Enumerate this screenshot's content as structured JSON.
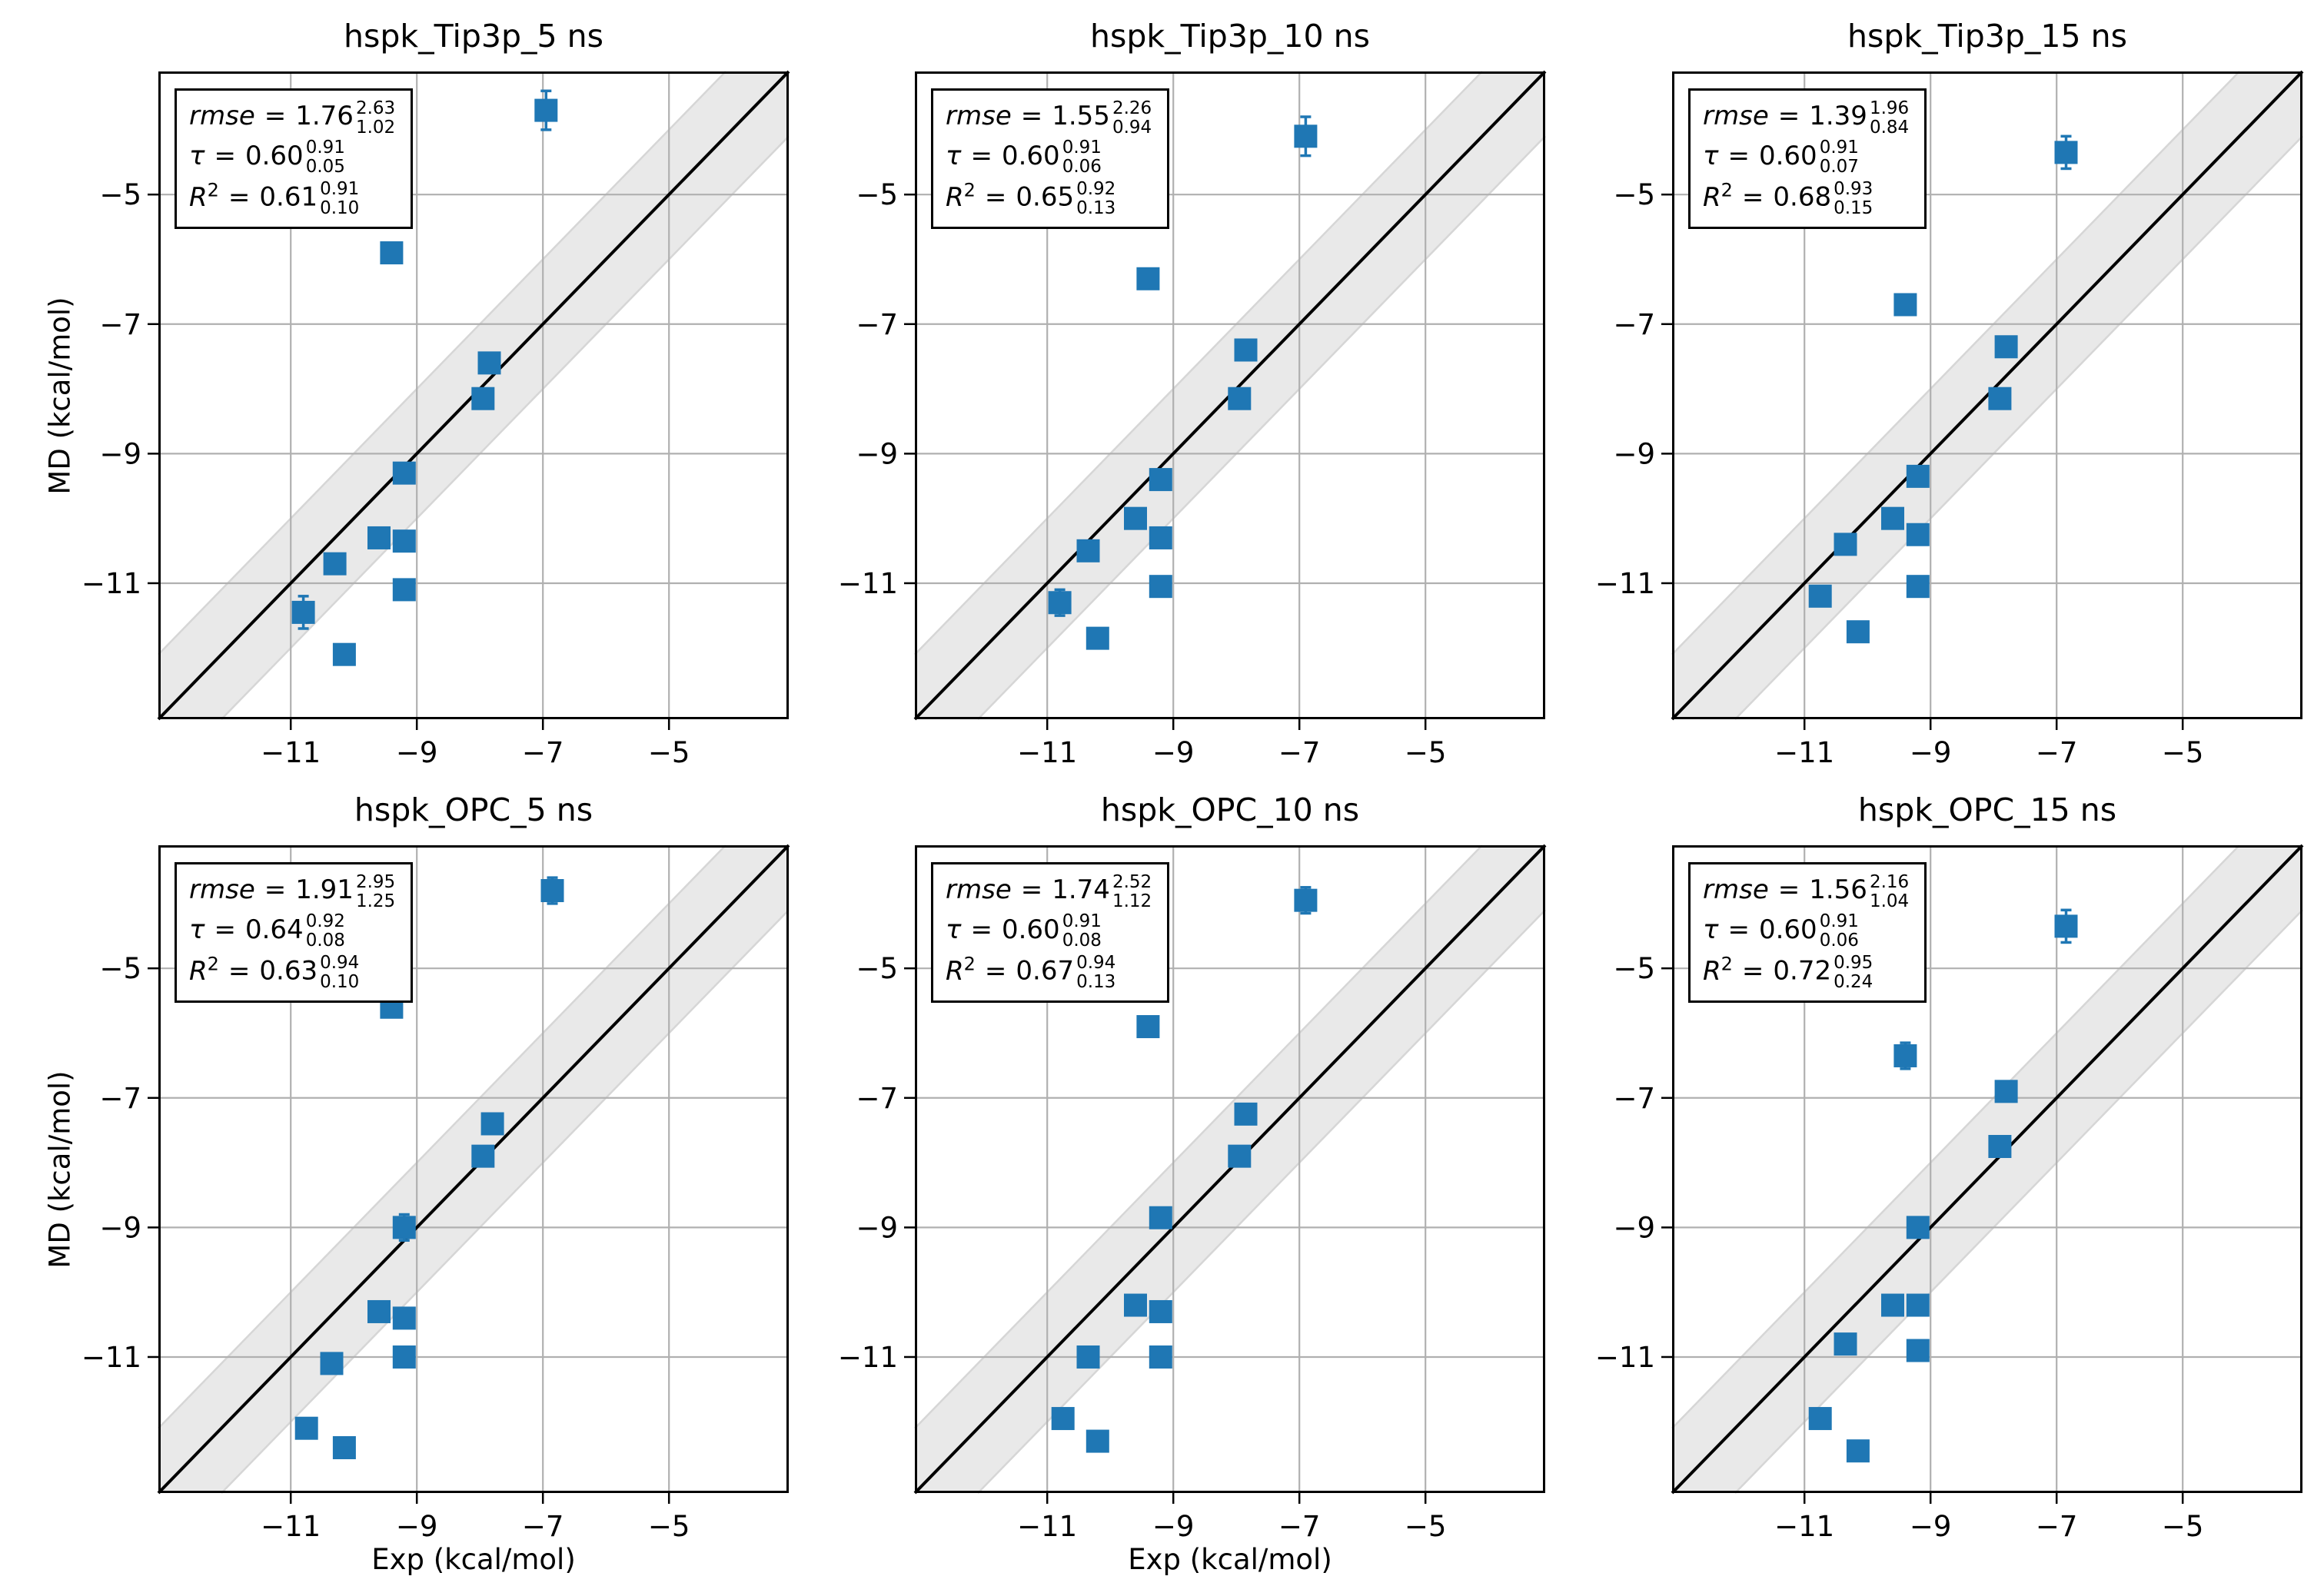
{
  "figure": {
    "xlabel": "Exp (kcal/mol)",
    "ylabel": "MD (kcal/mol)",
    "equals": "=",
    "axis_min": -13.1,
    "axis_max": -3.1,
    "tick_values": [
      -11,
      -9,
      -7,
      -5
    ],
    "tick_labels": [
      "−11",
      "−9",
      "−7",
      "−5"
    ],
    "marker_color": "#1f77b4",
    "identity_line_color": "#000000",
    "band_halfwidth": 1.0,
    "band_fill_color": "#e9e9e9",
    "band_edge_color": "#d6d6d6",
    "grid_color": "#b0b0b0",
    "spine_color": "#000000"
  },
  "chart_data": [
    {
      "type": "scatter",
      "title": "hspk_Tip3p_5 ns",
      "xlabel": "Exp (kcal/mol)",
      "ylabel": "MD (kcal/mol)",
      "xlim": [
        -13.1,
        -3.1
      ],
      "ylim": [
        -13.1,
        -3.1
      ],
      "xticks": [
        -11,
        -9,
        -7,
        -5
      ],
      "yticks": [
        -11,
        -9,
        -7,
        -5
      ],
      "identity_line": true,
      "shaded_band_halfwidth": 1.0,
      "stats": {
        "rmse": {
          "label": "rmse",
          "value": "1.76",
          "upper": "2.63",
          "lower": "1.02"
        },
        "tau": {
          "label": "τ",
          "value": "0.60",
          "upper": "0.91",
          "lower": "0.05"
        },
        "r2": {
          "label": "R",
          "exp": "2",
          "value": "0.61",
          "upper": "0.91",
          "lower": "0.10"
        }
      },
      "points": [
        {
          "x": -6.95,
          "y": -3.7,
          "yerr": 0.3
        },
        {
          "x": -9.4,
          "y": -5.9,
          "yerr": 0.15
        },
        {
          "x": -7.85,
          "y": -7.6,
          "yerr": 0.1
        },
        {
          "x": -7.95,
          "y": -8.15,
          "yerr": 0.1
        },
        {
          "x": -9.2,
          "y": -9.3,
          "yerr": 0.12
        },
        {
          "x": -9.6,
          "y": -10.3,
          "yerr": 0.1
        },
        {
          "x": -9.2,
          "y": -10.35,
          "yerr": 0.1
        },
        {
          "x": -10.3,
          "y": -10.7,
          "yerr": 0.1
        },
        {
          "x": -9.2,
          "y": -11.1,
          "yerr": 0.1
        },
        {
          "x": -10.8,
          "y": -11.45,
          "yerr": 0.25
        },
        {
          "x": -10.15,
          "y": -12.1,
          "yerr": 0.1
        }
      ]
    },
    {
      "type": "scatter",
      "title": "hspk_Tip3p_10 ns",
      "xlabel": "Exp (kcal/mol)",
      "ylabel": "MD (kcal/mol)",
      "xlim": [
        -13.1,
        -3.1
      ],
      "ylim": [
        -13.1,
        -3.1
      ],
      "xticks": [
        -11,
        -9,
        -7,
        -5
      ],
      "yticks": [
        -11,
        -9,
        -7,
        -5
      ],
      "identity_line": true,
      "shaded_band_halfwidth": 1.0,
      "stats": {
        "rmse": {
          "label": "rmse",
          "value": "1.55",
          "upper": "2.26",
          "lower": "0.94"
        },
        "tau": {
          "label": "τ",
          "value": "0.60",
          "upper": "0.91",
          "lower": "0.06"
        },
        "r2": {
          "label": "R",
          "exp": "2",
          "value": "0.65",
          "upper": "0.92",
          "lower": "0.13"
        }
      },
      "points": [
        {
          "x": -6.9,
          "y": -4.1,
          "yerr": 0.3
        },
        {
          "x": -9.4,
          "y": -6.3,
          "yerr": 0.1
        },
        {
          "x": -7.85,
          "y": -7.4,
          "yerr": 0.1
        },
        {
          "x": -7.95,
          "y": -8.15,
          "yerr": 0.1
        },
        {
          "x": -9.2,
          "y": -9.4,
          "yerr": 0.12
        },
        {
          "x": -9.6,
          "y": -10.0,
          "yerr": 0.1
        },
        {
          "x": -9.2,
          "y": -10.3,
          "yerr": 0.1
        },
        {
          "x": -10.35,
          "y": -10.5,
          "yerr": 0.15
        },
        {
          "x": -9.2,
          "y": -11.05,
          "yerr": 0.1
        },
        {
          "x": -10.8,
          "y": -11.3,
          "yerr": 0.2
        },
        {
          "x": -10.2,
          "y": -11.85,
          "yerr": 0.1
        }
      ]
    },
    {
      "type": "scatter",
      "title": "hspk_Tip3p_15 ns",
      "xlabel": "Exp (kcal/mol)",
      "ylabel": "MD (kcal/mol)",
      "xlim": [
        -13.1,
        -3.1
      ],
      "ylim": [
        -13.1,
        -3.1
      ],
      "xticks": [
        -11,
        -9,
        -7,
        -5
      ],
      "yticks": [
        -11,
        -9,
        -7,
        -5
      ],
      "identity_line": true,
      "shaded_band_halfwidth": 1.0,
      "stats": {
        "rmse": {
          "label": "rmse",
          "value": "1.39",
          "upper": "1.96",
          "lower": "0.84"
        },
        "tau": {
          "label": "τ",
          "value": "0.60",
          "upper": "0.91",
          "lower": "0.07"
        },
        "r2": {
          "label": "R",
          "exp": "2",
          "value": "0.68",
          "upper": "0.93",
          "lower": "0.15"
        }
      },
      "points": [
        {
          "x": -6.85,
          "y": -4.35,
          "yerr": 0.25
        },
        {
          "x": -9.4,
          "y": -6.7,
          "yerr": 0.1
        },
        {
          "x": -7.8,
          "y": -7.35,
          "yerr": 0.1
        },
        {
          "x": -7.9,
          "y": -8.15,
          "yerr": 0.1
        },
        {
          "x": -9.2,
          "y": -9.35,
          "yerr": 0.15
        },
        {
          "x": -9.6,
          "y": -10.0,
          "yerr": 0.1
        },
        {
          "x": -9.2,
          "y": -10.25,
          "yerr": 0.1
        },
        {
          "x": -10.35,
          "y": -10.4,
          "yerr": 0.1
        },
        {
          "x": -9.2,
          "y": -11.05,
          "yerr": 0.1
        },
        {
          "x": -10.75,
          "y": -11.2,
          "yerr": 0.15
        },
        {
          "x": -10.15,
          "y": -11.75,
          "yerr": 0.1
        }
      ]
    },
    {
      "type": "scatter",
      "title": "hspk_OPC_5 ns",
      "xlabel": "Exp (kcal/mol)",
      "ylabel": "MD (kcal/mol)",
      "xlim": [
        -13.1,
        -3.1
      ],
      "ylim": [
        -13.1,
        -3.1
      ],
      "xticks": [
        -11,
        -9,
        -7,
        -5
      ],
      "yticks": [
        -11,
        -9,
        -7,
        -5
      ],
      "identity_line": true,
      "shaded_band_halfwidth": 1.0,
      "stats": {
        "rmse": {
          "label": "rmse",
          "value": "1.91",
          "upper": "2.95",
          "lower": "1.25"
        },
        "tau": {
          "label": "τ",
          "value": "0.64",
          "upper": "0.92",
          "lower": "0.08"
        },
        "r2": {
          "label": "R",
          "exp": "2",
          "value": "0.63",
          "upper": "0.94",
          "lower": "0.10"
        }
      },
      "points": [
        {
          "x": -6.85,
          "y": -3.8,
          "yerr": 0.2
        },
        {
          "x": -9.4,
          "y": -5.6,
          "yerr": 0.1
        },
        {
          "x": -7.8,
          "y": -7.4,
          "yerr": 0.1
        },
        {
          "x": -7.95,
          "y": -7.9,
          "yerr": 0.1
        },
        {
          "x": -9.2,
          "y": -9.0,
          "yerr": 0.2
        },
        {
          "x": -9.6,
          "y": -10.3,
          "yerr": 0.1
        },
        {
          "x": -9.2,
          "y": -10.4,
          "yerr": 0.1
        },
        {
          "x": -9.2,
          "y": -11.0,
          "yerr": 0.1
        },
        {
          "x": -10.35,
          "y": -11.1,
          "yerr": 0.1
        },
        {
          "x": -10.75,
          "y": -12.1,
          "yerr": 0.15
        },
        {
          "x": -10.15,
          "y": -12.4,
          "yerr": 0.1
        }
      ]
    },
    {
      "type": "scatter",
      "title": "hspk_OPC_10 ns",
      "xlabel": "Exp (kcal/mol)",
      "ylabel": "MD (kcal/mol)",
      "xlim": [
        -13.1,
        -3.1
      ],
      "ylim": [
        -13.1,
        -3.1
      ],
      "xticks": [
        -11,
        -9,
        -7,
        -5
      ],
      "yticks": [
        -11,
        -9,
        -7,
        -5
      ],
      "identity_line": true,
      "shaded_band_halfwidth": 1.0,
      "stats": {
        "rmse": {
          "label": "rmse",
          "value": "1.74",
          "upper": "2.52",
          "lower": "1.12"
        },
        "tau": {
          "label": "τ",
          "value": "0.60",
          "upper": "0.91",
          "lower": "0.08"
        },
        "r2": {
          "label": "R",
          "exp": "2",
          "value": "0.67",
          "upper": "0.94",
          "lower": "0.13"
        }
      },
      "points": [
        {
          "x": -6.9,
          "y": -3.95,
          "yerr": 0.2
        },
        {
          "x": -9.4,
          "y": -5.9,
          "yerr": 0.15
        },
        {
          "x": -7.85,
          "y": -7.25,
          "yerr": 0.1
        },
        {
          "x": -7.95,
          "y": -7.9,
          "yerr": 0.1
        },
        {
          "x": -9.2,
          "y": -8.85,
          "yerr": 0.1
        },
        {
          "x": -9.6,
          "y": -10.2,
          "yerr": 0.1
        },
        {
          "x": -9.2,
          "y": -10.3,
          "yerr": 0.1
        },
        {
          "x": -10.35,
          "y": -11.0,
          "yerr": 0.1
        },
        {
          "x": -9.2,
          "y": -11.0,
          "yerr": 0.1
        },
        {
          "x": -10.75,
          "y": -11.95,
          "yerr": 0.1
        },
        {
          "x": -10.2,
          "y": -12.3,
          "yerr": 0.1
        }
      ]
    },
    {
      "type": "scatter",
      "title": "hspk_OPC_15 ns",
      "xlabel": "Exp (kcal/mol)",
      "ylabel": "MD (kcal/mol)",
      "xlim": [
        -13.1,
        -3.1
      ],
      "ylim": [
        -13.1,
        -3.1
      ],
      "xticks": [
        -11,
        -9,
        -7,
        -5
      ],
      "yticks": [
        -11,
        -9,
        -7,
        -5
      ],
      "identity_line": true,
      "shaded_band_halfwidth": 1.0,
      "stats": {
        "rmse": {
          "label": "rmse",
          "value": "1.56",
          "upper": "2.16",
          "lower": "1.04"
        },
        "tau": {
          "label": "τ",
          "value": "0.60",
          "upper": "0.91",
          "lower": "0.06"
        },
        "r2": {
          "label": "R",
          "exp": "2",
          "value": "0.72",
          "upper": "0.95",
          "lower": "0.24"
        }
      },
      "points": [
        {
          "x": -6.85,
          "y": -4.35,
          "yerr": 0.25
        },
        {
          "x": -9.4,
          "y": -6.35,
          "yerr": 0.2
        },
        {
          "x": -7.8,
          "y": -6.9,
          "yerr": 0.1
        },
        {
          "x": -7.9,
          "y": -7.75,
          "yerr": 0.1
        },
        {
          "x": -9.2,
          "y": -9.0,
          "yerr": 0.15
        },
        {
          "x": -9.6,
          "y": -10.2,
          "yerr": 0.1
        },
        {
          "x": -9.2,
          "y": -10.2,
          "yerr": 0.1
        },
        {
          "x": -10.35,
          "y": -10.8,
          "yerr": 0.1
        },
        {
          "x": -9.2,
          "y": -10.9,
          "yerr": 0.1
        },
        {
          "x": -10.75,
          "y": -11.95,
          "yerr": 0.15
        },
        {
          "x": -10.15,
          "y": -12.45,
          "yerr": 0.1
        }
      ]
    }
  ]
}
